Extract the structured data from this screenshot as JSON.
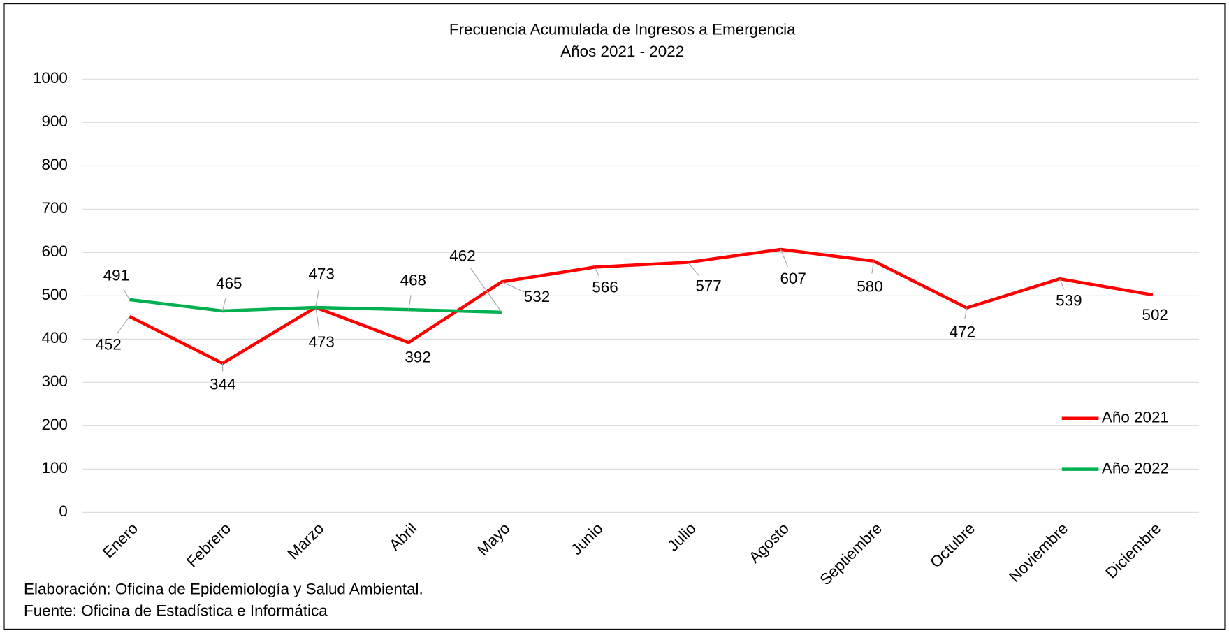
{
  "chart_data": {
    "type": "line",
    "title": "Frecuencia Acumulada de Ingresos a Emergencia",
    "subtitle": "Años 2021 - 2022",
    "categories": [
      "Enero",
      "Febrero",
      "Marzo",
      "Abril",
      "Mayo",
      "Junio",
      "Julio",
      "Agosto",
      "Septiembre",
      "Octubre",
      "Noviembre",
      "Diciembre"
    ],
    "series": [
      {
        "name": "Año 2021",
        "color": "#ff0000",
        "values": [
          452,
          344,
          473,
          392,
          532,
          566,
          577,
          607,
          580,
          472,
          539,
          502
        ]
      },
      {
        "name": "Año 2022",
        "color": "#00b050",
        "values": [
          491,
          465,
          473,
          468,
          462,
          null,
          null,
          null,
          null,
          null,
          null,
          null
        ]
      }
    ],
    "ylim": [
      0,
      1000
    ],
    "yticks": [
      0,
      100,
      200,
      300,
      400,
      500,
      600,
      700,
      800,
      900,
      1000
    ],
    "grid": true,
    "legend": "right",
    "notes": [
      "Elaboración: Oficina de Epidemiología y Salud Ambiental.",
      "Fuente:  Oficina de Estadística e Informática"
    ]
  }
}
